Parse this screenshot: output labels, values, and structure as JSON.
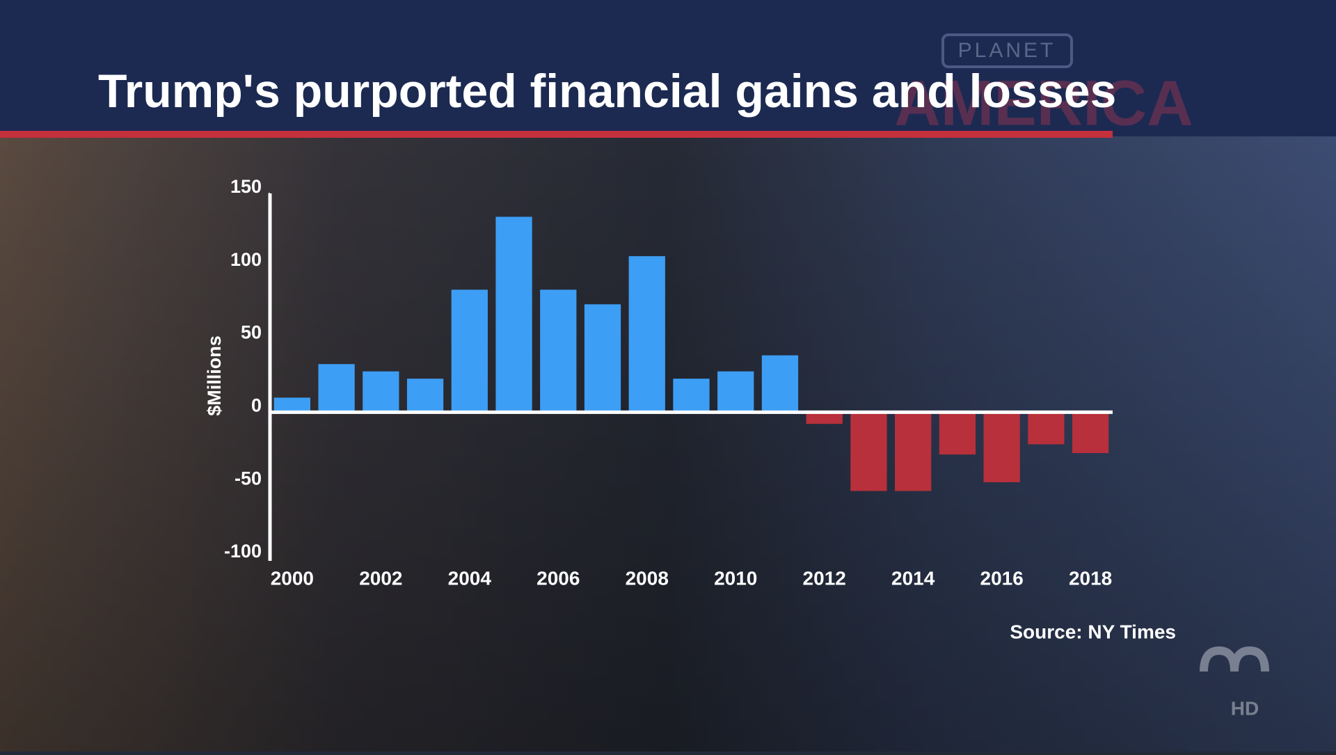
{
  "chart_data": {
    "type": "bar",
    "title": "Trump's purported financial gains and losses",
    "y_label": "$Millions",
    "source": "Source: NY Times",
    "categories": [
      "2000",
      null,
      "2002",
      null,
      "2004",
      null,
      "2006",
      null,
      "2008",
      null,
      "2010",
      null,
      "2012",
      null,
      "2014",
      null,
      "2016",
      null,
      "2018"
    ],
    "values": [
      10,
      33,
      28,
      23,
      84,
      134,
      84,
      74,
      107,
      23,
      28,
      39,
      -8,
      -54,
      -54,
      -29,
      -48,
      -22,
      -28
    ],
    "color_positive": "#3d9ef5",
    "color_negative": "#b8303b",
    "ylim": [
      -100,
      150
    ],
    "yticks": [
      -100,
      -50,
      0,
      50,
      100,
      150
    ],
    "grid": false
  },
  "branding": {
    "show": "PLANET",
    "show_sub": "AMERICA",
    "channel": "HD"
  }
}
